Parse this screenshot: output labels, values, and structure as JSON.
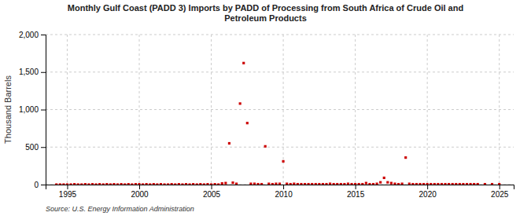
{
  "chart_data": {
    "type": "scatter",
    "title": "Monthly Gulf Coast (PADD 3) Imports by PADD of Processing from South Africa of Crude Oil and\nPetroleum Products",
    "ylabel": "Thousand Barrels",
    "source": "Source: U.S. Energy Information Administration",
    "x": [
      1994.25,
      1994.5,
      1994.75,
      1995,
      1995.25,
      1995.5,
      1995.75,
      1996,
      1996.25,
      1996.5,
      1996.75,
      1997,
      1997.25,
      1997.5,
      1997.75,
      1998,
      1998.25,
      1998.5,
      1998.75,
      1999,
      1999.25,
      1999.5,
      1999.75,
      2000,
      2000.25,
      2000.5,
      2000.75,
      2001,
      2001.25,
      2001.5,
      2001.75,
      2002,
      2002.25,
      2002.5,
      2002.75,
      2003,
      2003.25,
      2003.5,
      2003.75,
      2004,
      2004.25,
      2004.5,
      2004.75,
      2005,
      2005.25,
      2005.5,
      2005.75,
      2006,
      2006.25,
      2006.5,
      2006.75,
      2007,
      2007.25,
      2007.5,
      2007.75,
      2008,
      2008.25,
      2008.5,
      2008.75,
      2009,
      2009.25,
      2009.5,
      2009.75,
      2010,
      2010.25,
      2010.5,
      2010.75,
      2011,
      2011.25,
      2011.5,
      2011.75,
      2012,
      2012.25,
      2012.5,
      2012.75,
      2013,
      2013.25,
      2013.5,
      2013.75,
      2014,
      2014.25,
      2014.5,
      2014.75,
      2015,
      2015.25,
      2015.5,
      2015.75,
      2016,
      2016.25,
      2016.5,
      2016.75,
      2017,
      2017.25,
      2017.5,
      2017.75,
      2018,
      2018.25,
      2018.5,
      2018.75,
      2019,
      2019.25,
      2019.5,
      2019.75,
      2020,
      2020.25,
      2020.5,
      2020.75,
      2021,
      2021.25,
      2021.5,
      2021.75,
      2022,
      2022.25,
      2022.5,
      2022.75,
      2023,
      2023.25,
      2023.5,
      2024,
      2024.5,
      2025
    ],
    "values": [
      0,
      0,
      0,
      0,
      0,
      4,
      0,
      0,
      4,
      0,
      4,
      0,
      4,
      0,
      4,
      0,
      4,
      0,
      4,
      0,
      4,
      0,
      4,
      4,
      0,
      4,
      0,
      4,
      0,
      4,
      0,
      0,
      4,
      0,
      4,
      0,
      4,
      0,
      4,
      0,
      4,
      0,
      4,
      0,
      4,
      0,
      15,
      20,
      550,
      25,
      10,
      1080,
      1620,
      820,
      10,
      10,
      5,
      5,
      510,
      10,
      5,
      10,
      10,
      310,
      10,
      5,
      10,
      5,
      5,
      5,
      5,
      5,
      5,
      5,
      5,
      5,
      10,
      5,
      5,
      5,
      5,
      10,
      5,
      5,
      5,
      5,
      20,
      5,
      5,
      10,
      30,
      90,
      30,
      20,
      10,
      5,
      10,
      360,
      10,
      5,
      5,
      5,
      5,
      5,
      5,
      5,
      5,
      5,
      5,
      5,
      5,
      5,
      5,
      5,
      5,
      5,
      5,
      5,
      5,
      5,
      5
    ],
    "color": "#cc0000",
    "marker": "square",
    "xlim": [
      1993.5,
      2026
    ],
    "ylim": [
      0,
      2000
    ],
    "xticks": [
      1995,
      2000,
      2005,
      2010,
      2015,
      2020,
      2025
    ],
    "yticks": [
      0,
      500,
      {
        "value": 1000,
        "label": "1,000"
      },
      {
        "value": 1500,
        "label": "1,500"
      },
      {
        "value": 2000,
        "label": "2,000"
      }
    ],
    "grid": true
  }
}
